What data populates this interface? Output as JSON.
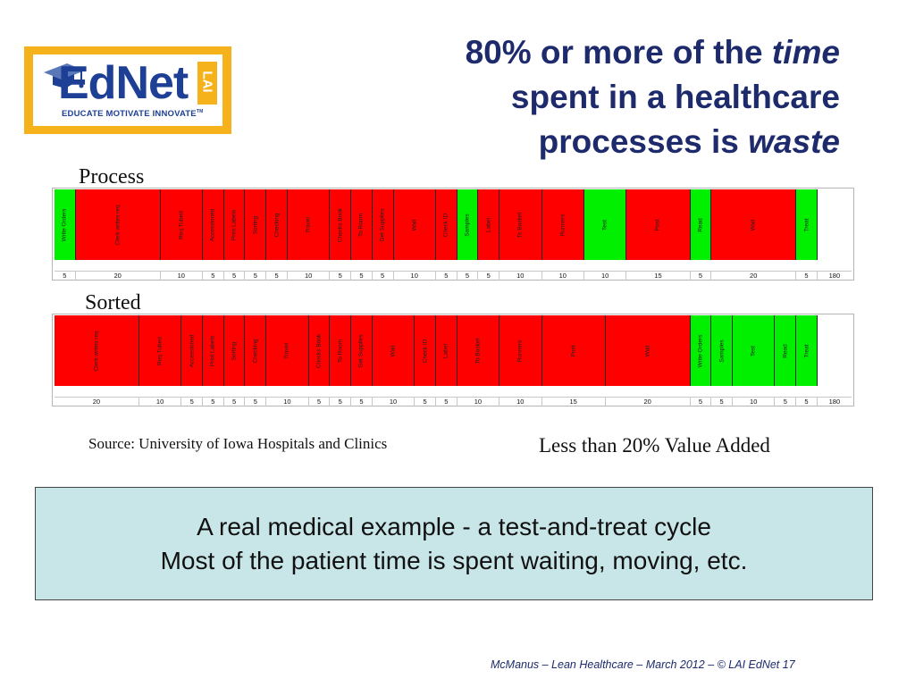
{
  "logo": {
    "wordmark": "EdNet",
    "badge": "LAI",
    "tagline": "EDUCATE MOTIVATE INNOVATE",
    "trademark": "TM"
  },
  "title": {
    "line1_pre": "80% or more of the ",
    "line1_em": "time",
    "line2": "spent in a healthcare",
    "line3_pre": "processes is ",
    "line3_em": "waste"
  },
  "process_label": "Process",
  "sorted_label": "Sorted",
  "process_chart": {
    "steps": [
      {
        "label": "Write Orders",
        "value": "5",
        "va": true
      },
      {
        "label": "Clerk writes req",
        "value": "20",
        "va": false
      },
      {
        "label": "Req Tubed",
        "value": "10",
        "va": false
      },
      {
        "label": "Accessioned",
        "value": "5",
        "va": false
      },
      {
        "label": "Print Labels",
        "value": "5",
        "va": false
      },
      {
        "label": "Sorting",
        "value": "5",
        "va": false
      },
      {
        "label": "Checking",
        "value": "5",
        "va": false
      },
      {
        "label": "Travel",
        "value": "10",
        "va": false
      },
      {
        "label": "Checks Book",
        "value": "5",
        "va": false
      },
      {
        "label": "To Room",
        "value": "5",
        "va": false
      },
      {
        "label": "Get Supplies",
        "value": "5",
        "va": false
      },
      {
        "label": "Wait",
        "value": "10",
        "va": false
      },
      {
        "label": "Check ID",
        "value": "5",
        "va": false
      },
      {
        "label": "Samples",
        "value": "5",
        "va": true
      },
      {
        "label": "Label",
        "value": "5",
        "va": false
      },
      {
        "label": "To Basket",
        "value": "10",
        "va": false
      },
      {
        "label": "Runners",
        "value": "10",
        "va": false
      },
      {
        "label": "Test",
        "value": "10",
        "va": true
      },
      {
        "label": "Post",
        "value": "15",
        "va": false
      },
      {
        "label": "Read",
        "value": "5",
        "va": true
      },
      {
        "label": "Wait",
        "value": "20",
        "va": false
      },
      {
        "label": "Treat",
        "value": "5",
        "va": true
      }
    ],
    "total": "180"
  },
  "sorted_chart": {
    "steps": [
      {
        "label": "Clerk writes req",
        "value": "20",
        "va": false
      },
      {
        "label": "Req Tubed",
        "value": "10",
        "va": false
      },
      {
        "label": "Accessioned",
        "value": "5",
        "va": false
      },
      {
        "label": "Print Labels",
        "value": "5",
        "va": false
      },
      {
        "label": "Sorting",
        "value": "5",
        "va": false
      },
      {
        "label": "Checking",
        "value": "5",
        "va": false
      },
      {
        "label": "Travel",
        "value": "10",
        "va": false
      },
      {
        "label": "Checks Book",
        "value": "5",
        "va": false
      },
      {
        "label": "To Room",
        "value": "5",
        "va": false
      },
      {
        "label": "Get Supplies",
        "value": "5",
        "va": false
      },
      {
        "label": "Wait",
        "value": "10",
        "va": false
      },
      {
        "label": "Check ID",
        "value": "5",
        "va": false
      },
      {
        "label": "Label",
        "value": "5",
        "va": false
      },
      {
        "label": "To Basket",
        "value": "10",
        "va": false
      },
      {
        "label": "Runners",
        "value": "10",
        "va": false
      },
      {
        "label": "Post",
        "value": "15",
        "va": false
      },
      {
        "label": "Wait",
        "value": "20",
        "va": false
      },
      {
        "label": "Write Orders",
        "value": "5",
        "va": true
      },
      {
        "label": "Samples",
        "value": "5",
        "va": true
      },
      {
        "label": "Test",
        "value": "10",
        "va": true
      },
      {
        "label": "Read",
        "value": "5",
        "va": true
      },
      {
        "label": "Treat",
        "value": "5",
        "va": true
      }
    ],
    "total": "180"
  },
  "colors": {
    "waste": "#ff0000",
    "value_added": "#00f000",
    "title": "#1d2b6c",
    "callout_bg": "#c8e6e8",
    "logo_blue": "#1d3f95",
    "logo_gold": "#f5b21b"
  },
  "source": "Source: University of Iowa Hospitals and Clinics",
  "summary": "Less than 20% Value Added",
  "callout": {
    "line1": "A real medical example - a test-and-treat cycle",
    "line2": "Most of the patient time is spent waiting, moving, etc."
  },
  "footer": "McManus – Lean Healthcare – March 2012 – © LAI EdNet  17"
}
